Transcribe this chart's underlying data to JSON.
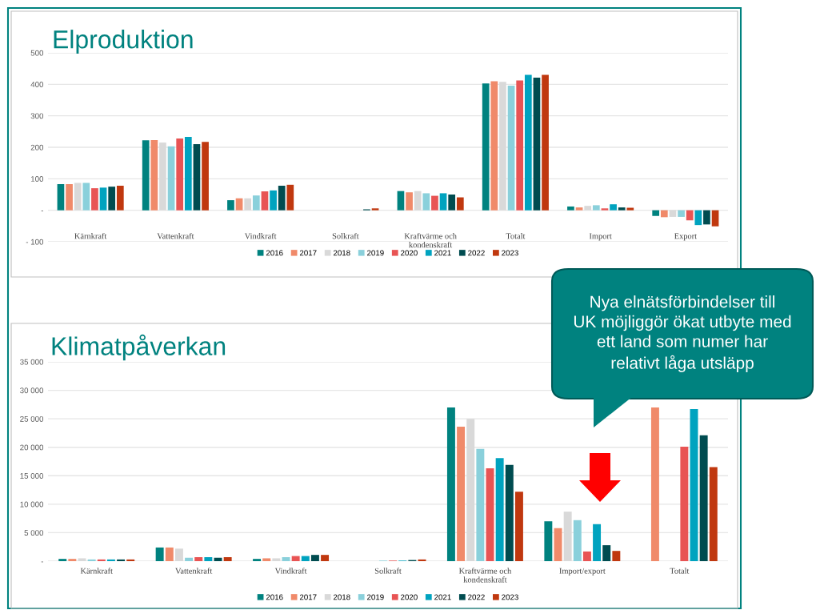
{
  "chart_data": [
    {
      "type": "bar",
      "title": "Elproduktion",
      "categories": [
        "Kärnkraft",
        "Vattenkraft",
        "Vindkraft",
        "Solkraft",
        "Kraftvärme och kondenskraft",
        "Totalt",
        "Import",
        "Export"
      ],
      "series": [
        {
          "name": "2016",
          "color": "#00827f",
          "values": [
            83,
            222,
            32,
            0,
            61,
            403,
            12,
            -18
          ]
        },
        {
          "name": "2017",
          "color": "#f08a6a",
          "values": [
            83,
            223,
            38,
            0,
            57,
            410,
            9,
            -22
          ]
        },
        {
          "name": "2018",
          "color": "#d9d9d9",
          "values": [
            87,
            215,
            38,
            0,
            61,
            408,
            14,
            -21
          ]
        },
        {
          "name": "2019",
          "color": "#8ad0db",
          "values": [
            87,
            203,
            47,
            0,
            54,
            396,
            16,
            -21
          ]
        },
        {
          "name": "2020",
          "color": "#e85454",
          "values": [
            70,
            228,
            60,
            0,
            46,
            412,
            6,
            -32
          ]
        },
        {
          "name": "2021",
          "color": "#00a3bf",
          "values": [
            72,
            233,
            63,
            0,
            54,
            430,
            19,
            -47
          ]
        },
        {
          "name": "2022",
          "color": "#004c50",
          "values": [
            75,
            210,
            78,
            3,
            50,
            421,
            9,
            -45
          ]
        },
        {
          "name": "2023",
          "color": "#c0380f",
          "values": [
            78,
            217,
            81,
            6,
            41,
            430,
            8,
            -51
          ]
        }
      ],
      "ylim": [
        -100,
        500
      ],
      "yticks": [
        {
          "value": -100,
          "label": "- 100"
        },
        {
          "value": 0,
          "label": "-"
        },
        100,
        200,
        300,
        400,
        500
      ],
      "grid": "y",
      "legend": "bottom"
    },
    {
      "type": "bar",
      "title": "Klimatpåverkan",
      "categories": [
        "Kärnkraft",
        "Vattenkraft",
        "Vindkraft",
        "Solkraft",
        "Kraftvärme och kondenskraft",
        "Import/export",
        "Totalt"
      ],
      "series": [
        {
          "name": "2016",
          "color": "#00827f",
          "values": [
            400,
            2400,
            400,
            0,
            27000,
            7000,
            null
          ]
        },
        {
          "name": "2017",
          "color": "#f08a6a",
          "values": [
            400,
            2400,
            500,
            0,
            23600,
            5800,
            27000
          ]
        },
        {
          "name": "2018",
          "color": "#d9d9d9",
          "values": [
            500,
            2200,
            500,
            0,
            25000,
            8700,
            null
          ]
        },
        {
          "name": "2019",
          "color": "#8ad0db",
          "values": [
            300,
            600,
            700,
            100,
            19700,
            7200,
            null
          ]
        },
        {
          "name": "2020",
          "color": "#e85454",
          "values": [
            300,
            700,
            900,
            100,
            16300,
            1700,
            20100
          ]
        },
        {
          "name": "2021",
          "color": "#00a3bf",
          "values": [
            300,
            700,
            900,
            100,
            18100,
            6500,
            26700
          ]
        },
        {
          "name": "2022",
          "color": "#004c50",
          "values": [
            300,
            600,
            1100,
            200,
            16900,
            2800,
            22100
          ]
        },
        {
          "name": "2023",
          "color": "#c0380f",
          "values": [
            300,
            700,
            1100,
            300,
            12200,
            1800,
            16500
          ]
        }
      ],
      "ylim": [
        0,
        35000
      ],
      "yticks": [
        {
          "value": 0,
          "label": "-"
        },
        {
          "value": 5000,
          "label": "5 000"
        },
        {
          "value": 10000,
          "label": "10 000"
        },
        {
          "value": 15000,
          "label": "15 000"
        },
        {
          "value": 20000,
          "label": "20 000"
        },
        {
          "value": 25000,
          "label": "25 000"
        },
        {
          "value": 30000,
          "label": "30 000"
        },
        {
          "value": 35000,
          "label": "35 000"
        }
      ],
      "grid": "y",
      "legend": "bottom",
      "annotations": [
        "Nya elnätsförbindelser till UK möjliggör ökat utbyte med ett land som numer har relativt låga utsläpp"
      ]
    }
  ]
}
